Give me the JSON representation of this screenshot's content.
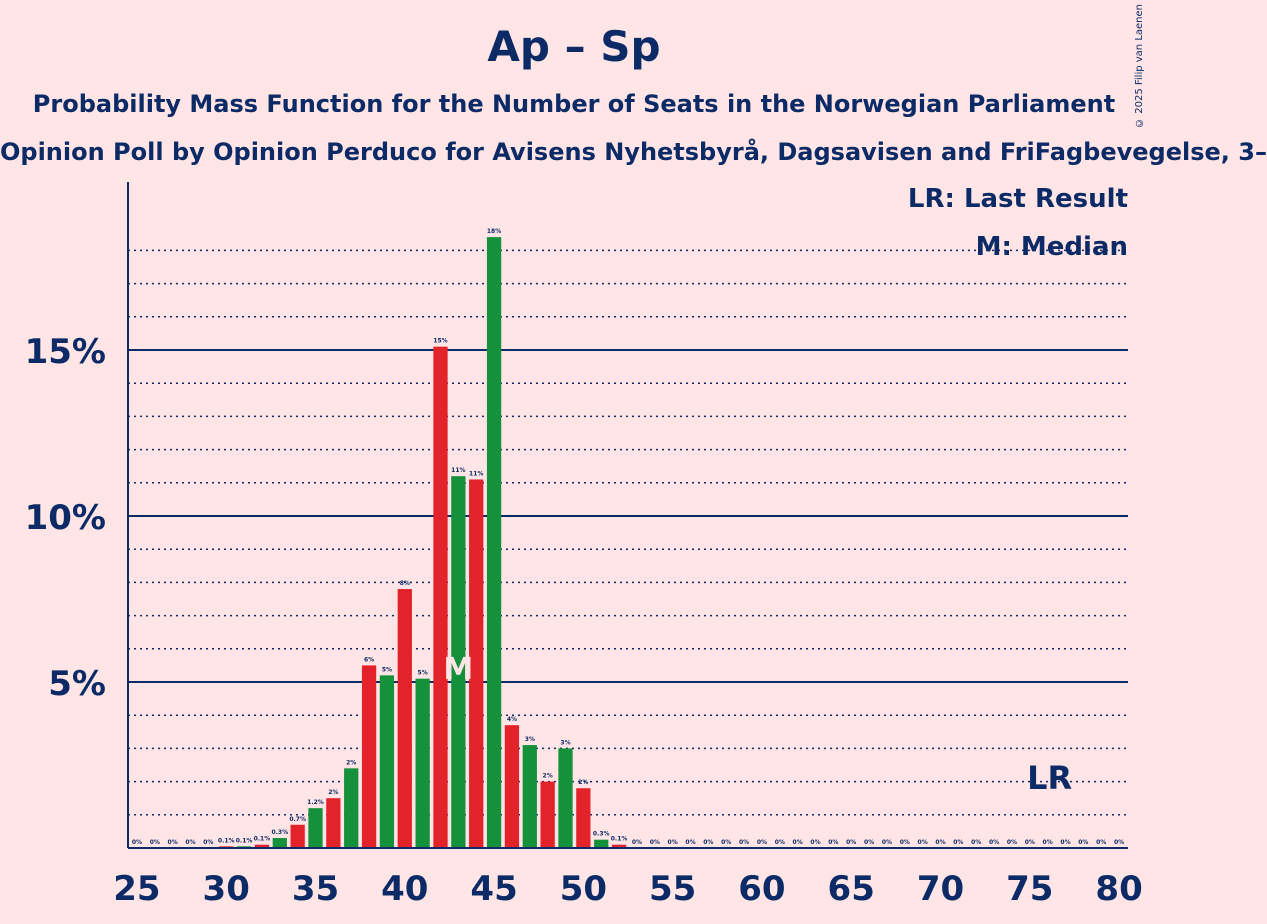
{
  "title": "Ap – Sp",
  "subtitle": "Probability Mass Function for the Number of Seats in the Norwegian Parliament",
  "poll_line": "Opinion Poll by Opinion Perduco for Avisens Nyhetsbyrå, Dagsavisen and FriFagbevegelse, 3–",
  "copyright": "© 2025 Filip van Laenen",
  "legend": {
    "last_result": "LR: Last Result",
    "median": "M: Median"
  },
  "markers": {
    "median_label": "M",
    "median_seat": 43,
    "last_result_label": "LR",
    "last_result_seat": 76
  },
  "colors": {
    "red": "#E3232A",
    "green": "#15913B",
    "axis": "#0b2a66",
    "background": "#FFE5E5"
  },
  "chart_data": {
    "type": "bar",
    "x": [
      25,
      26,
      27,
      28,
      29,
      30,
      31,
      32,
      33,
      34,
      35,
      36,
      37,
      38,
      39,
      40,
      41,
      42,
      43,
      44,
      45,
      46,
      47,
      48,
      49,
      50,
      51,
      52,
      53,
      54,
      55,
      56,
      57,
      58,
      59,
      60,
      61,
      62,
      63,
      64,
      65,
      66,
      67,
      68,
      69,
      70,
      71,
      72,
      73,
      74,
      75,
      76,
      77,
      78,
      79,
      80
    ],
    "values": [
      0,
      0,
      0,
      0,
      0,
      0.05,
      0.05,
      0.1,
      0.3,
      0.7,
      1.2,
      1.5,
      2.4,
      5.5,
      5.2,
      7.8,
      5.1,
      15.1,
      11.2,
      11.1,
      18.4,
      3.7,
      3.1,
      2.0,
      3.0,
      1.8,
      0.25,
      0.1,
      0,
      0,
      0,
      0,
      0,
      0,
      0,
      0,
      0,
      0,
      0,
      0,
      0,
      0,
      0,
      0,
      0,
      0,
      0,
      0,
      0,
      0,
      0,
      0,
      0,
      0,
      0,
      0
    ],
    "labels": [
      "0%",
      "0%",
      "0%",
      "0%",
      "0%",
      "0.1%",
      "0.1%",
      "0.1%",
      "0.3%",
      "0.7%",
      "1.2%",
      "2%",
      "2%",
      "6%",
      "5%",
      "8%",
      "5%",
      "15%",
      "11%",
      "11%",
      "18%",
      "4%",
      "3%",
      "2%",
      "3%",
      "2%",
      "0.3%",
      "0.1%",
      "0%",
      "0%",
      "0%",
      "0%",
      "0%",
      "0%",
      "0%",
      "0%",
      "0%",
      "0%",
      "0%",
      "0%",
      "0%",
      "0%",
      "0%",
      "0%",
      "0%",
      "0%",
      "0%",
      "0%",
      "0%",
      "0%",
      "0%",
      "0%",
      "0%",
      "0%",
      "0%",
      "0%"
    ],
    "xticks": [
      "25",
      "30",
      "35",
      "40",
      "45",
      "50",
      "55",
      "60",
      "65",
      "70",
      "75",
      "80"
    ],
    "yticks": [
      "5%",
      "10%",
      "15%"
    ],
    "ylim": [
      0,
      20
    ],
    "grid": true
  }
}
